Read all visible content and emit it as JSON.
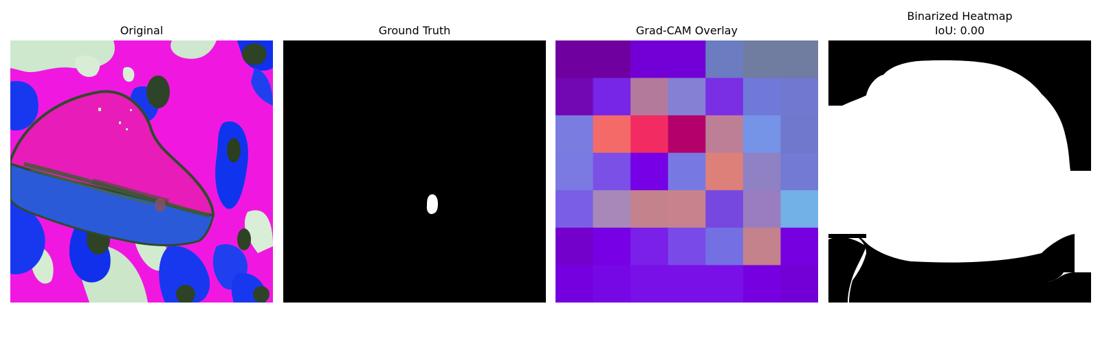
{
  "panels": [
    {
      "title": "Original"
    },
    {
      "title": "Ground Truth"
    },
    {
      "title": "Grad-CAM Overlay"
    },
    {
      "title": "Binarized Heatmap",
      "subtitle": "IoU: 0.00"
    }
  ],
  "gradcam": {
    "rows": 7,
    "cols": 7,
    "colors": [
      [
        "#6f009f",
        "#6f009f",
        "#7200d6",
        "#7200d6",
        "#6c7cc0",
        "#707ca0",
        "#707ca0"
      ],
      [
        "#7208b4",
        "#7725e6",
        "#b47a9c",
        "#8580d4",
        "#7a2fe4",
        "#7078d8",
        "#7078d0"
      ],
      [
        "#7a7ce0",
        "#f46a68",
        "#f22c62",
        "#b4006a",
        "#bd7f96",
        "#7594e8",
        "#6f78cc"
      ],
      [
        "#7a7ae2",
        "#7a50e6",
        "#7600e6",
        "#7878e2",
        "#dd807a",
        "#9080c4",
        "#737ad4"
      ],
      [
        "#7a5ee6",
        "#a888b8",
        "#c4828c",
        "#c8828e",
        "#7648e0",
        "#9a7cc0",
        "#72b0e8"
      ],
      [
        "#7400cc",
        "#7700e4",
        "#7a20e8",
        "#7a4ae8",
        "#7470e4",
        "#c4828c",
        "#7600e0"
      ],
      [
        "#7400e0",
        "#7708e6",
        "#7a10e8",
        "#7a10e8",
        "#7a10e8",
        "#7600e0",
        "#7200d6"
      ]
    ]
  },
  "colors": {
    "magenta": "#f018e0",
    "blue": "#1030f0",
    "pale_green": "#cde8cc",
    "dark_olive": "#2e4226",
    "mask_bg": "#000000",
    "mask_fg": "#ffffff"
  }
}
